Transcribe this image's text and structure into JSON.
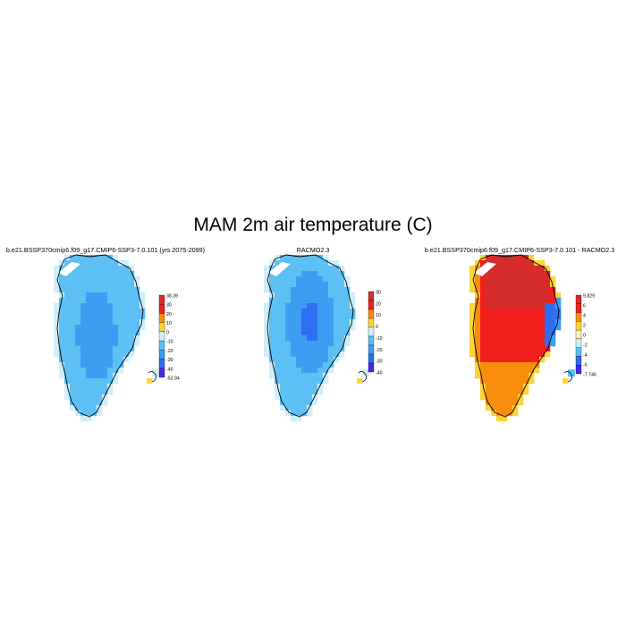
{
  "page": {
    "title": "MAM 2m air temperature (C)"
  },
  "chart_data": [
    {
      "type": "heatmap",
      "title": "b.e21.BSSP370cmip6.f09_g17.CMIP6-SSP3-7.0.101 (yrs 2075-2099)",
      "colorbar": {
        "levels": [
          "38.39",
          "30",
          "20",
          "10",
          "0",
          "-10",
          "-20",
          "-30",
          "-40",
          "-52.94"
        ],
        "colors": [
          "#d62c2c",
          "#f21f1f",
          "#f78d0b",
          "#fdd335",
          "#cfeefc",
          "#5cc0f5",
          "#3d9df2",
          "#2e6ef0",
          "#4a25e6"
        ]
      },
      "field_description": "Greenland ice sheet, values mostly -10 to -20 C; interior -20 to -30 C"
    },
    {
      "type": "heatmap",
      "title": "RACMO2.3",
      "colorbar": {
        "levels": [
          "30",
          "20",
          "10",
          "0",
          "-10",
          "-20",
          "-30",
          "-40"
        ],
        "colors": [
          "#d62c2c",
          "#f21f1f",
          "#f78d0b",
          "#fdd335",
          "#cfeefc",
          "#5cc0f5",
          "#3d9df2",
          "#2e6ef0",
          "#4a25e6"
        ]
      },
      "field_description": "Greenland ice sheet, coast -10 to -20 C; interior -20 to -30 C; summit -30 to -40 C"
    },
    {
      "type": "heatmap",
      "title": "b.e21.BSSP370cmip6.f09_g17.CMIP6-SSP3-7.0.101 - RACMO2.3",
      "colorbar": {
        "levels": [
          "9.829",
          "6",
          "4",
          "2",
          "0",
          "-2",
          "-4",
          "-6",
          "-7.746"
        ],
        "colors": [
          "#d62c2c",
          "#f21f1f",
          "#f78d0b",
          "#fdd335",
          "#fbf3b0",
          "#cfeefc",
          "#5cc0f5",
          "#2e6ef0",
          "#4a25e6"
        ]
      },
      "field_description": "Difference field: north interior 6 to 9.8, centre 4 to 6, south 2 to 4, margins -2 to 2"
    }
  ]
}
